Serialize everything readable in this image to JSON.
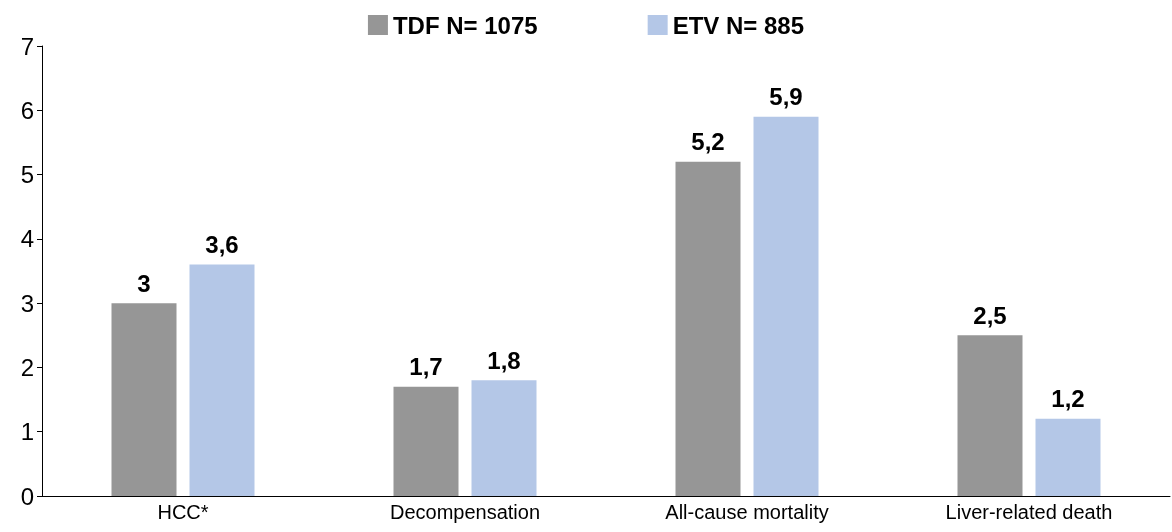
{
  "chart_data": {
    "type": "bar",
    "categories": [
      "HCC*",
      "Decompensation",
      "All-cause mortality",
      "Liver-related death"
    ],
    "series": [
      {
        "name": "TDF N= 1075",
        "color": "#969696",
        "values": [
          3,
          1.7,
          5.2,
          2.5
        ],
        "value_labels": [
          "3",
          "1,7",
          "5,2",
          "2,5"
        ]
      },
      {
        "name": "ETV N= 885",
        "color": "#b4c7e7",
        "values": [
          3.6,
          1.8,
          5.9,
          1.2
        ],
        "value_labels": [
          "3,6",
          "1,8",
          "5,9",
          "1,2"
        ]
      }
    ],
    "ylim": [
      0,
      7
    ],
    "yticks": [
      0,
      1,
      2,
      3,
      4,
      5,
      6,
      7
    ],
    "grid": false,
    "legend": "top"
  }
}
